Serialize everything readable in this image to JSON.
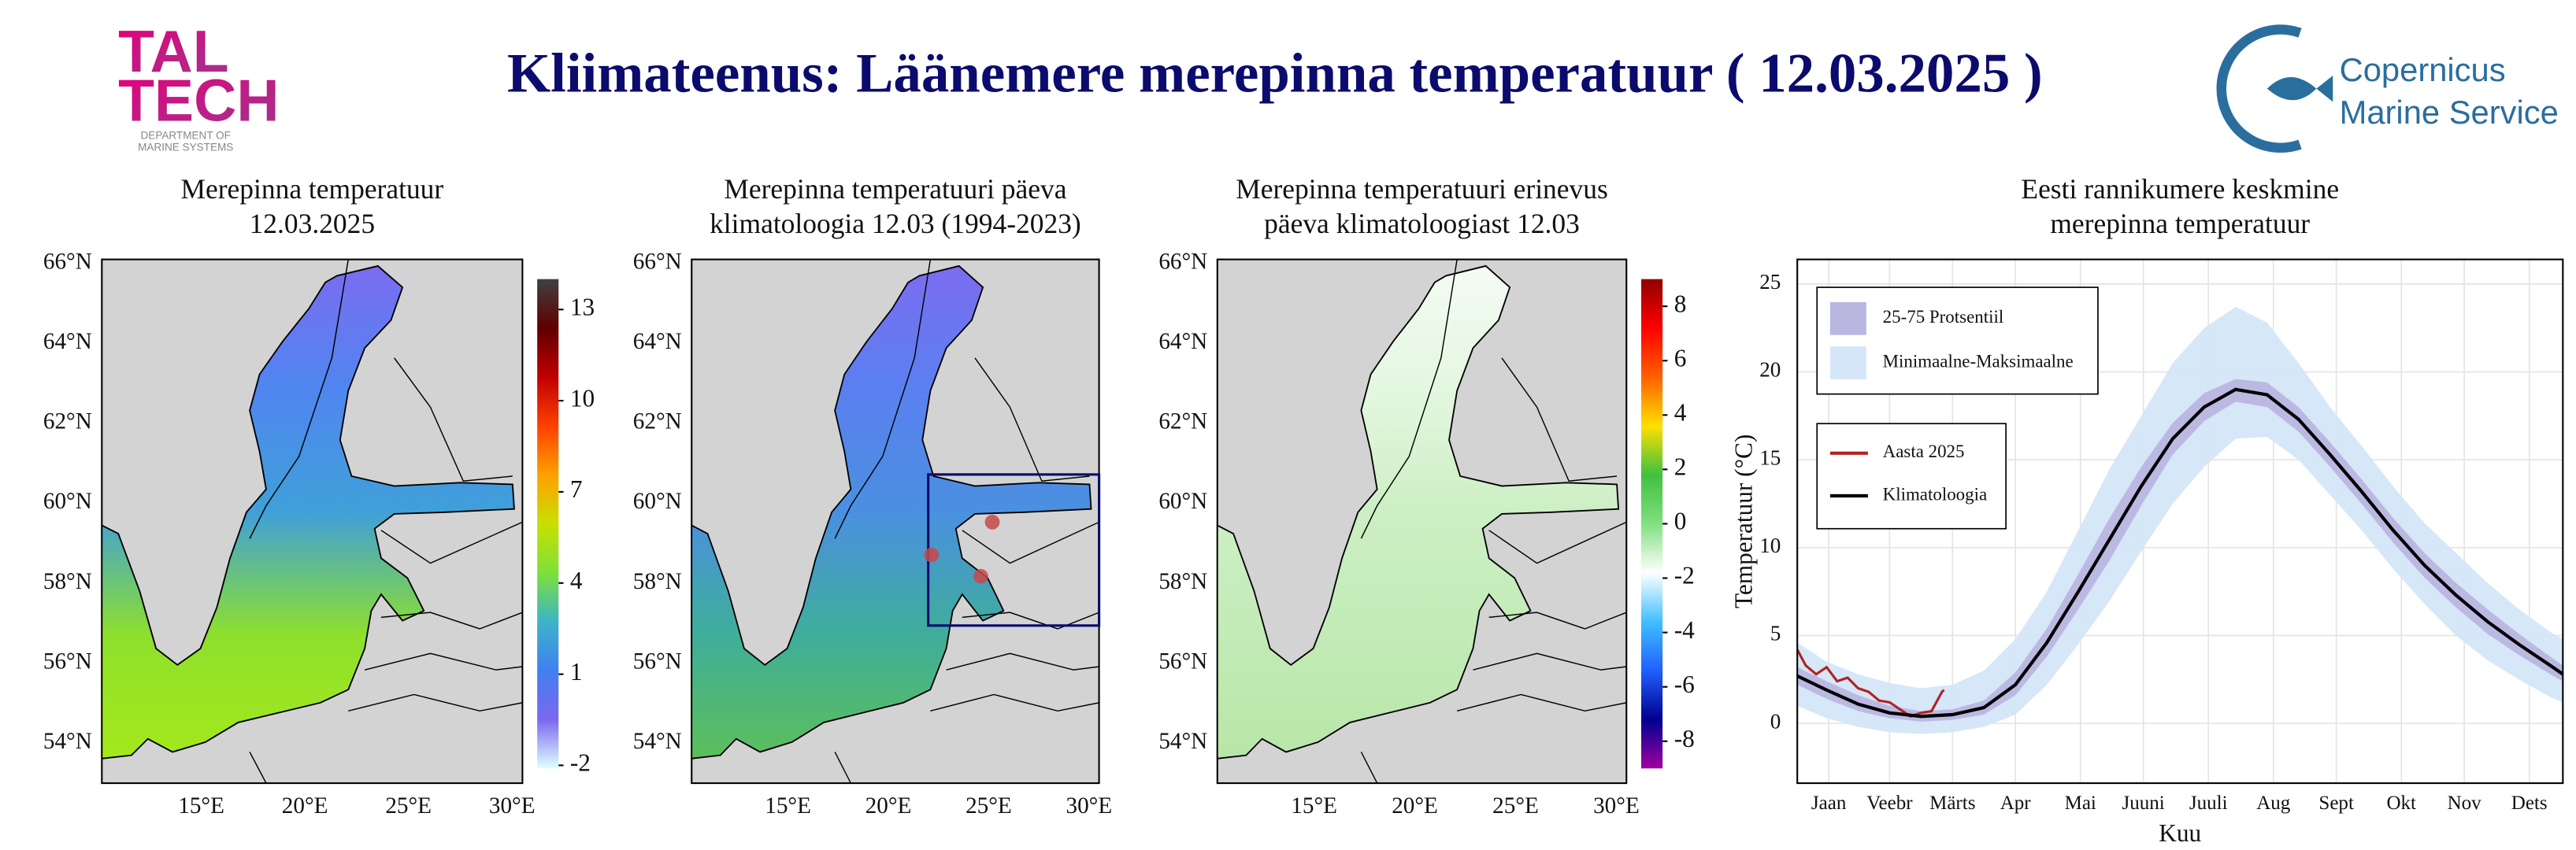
{
  "header": {
    "title": "Kliimateenus: Läänemere merepinna temperatuur ( 12.03.2025 )",
    "logo_left": [
      "TAL",
      "TECH",
      "DEPARTMENT OF",
      "MARINE SYSTEMS"
    ],
    "logo_right": [
      "Copernicus",
      "Marine Service"
    ]
  },
  "maps": {
    "xlim": [
      10.2,
      30.5
    ],
    "ylim": [
      53.0,
      66.1
    ],
    "lat_ticks": [
      {
        "value": 54,
        "label": "54°N"
      },
      {
        "value": 56,
        "label": "56°N"
      },
      {
        "value": 58,
        "label": "58°N"
      },
      {
        "value": 60,
        "label": "60°N"
      },
      {
        "value": 62,
        "label": "62°N"
      },
      {
        "value": 64,
        "label": "64°N"
      },
      {
        "value": 66,
        "label": "66°N"
      }
    ],
    "lon_ticks": [
      {
        "value": 15,
        "label": "15°E"
      },
      {
        "value": 20,
        "label": "20°E"
      },
      {
        "value": 25,
        "label": "25°E"
      },
      {
        "value": 30,
        "label": "30°E"
      }
    ],
    "items": [
      {
        "title": [
          "Merepinna temperatuur",
          "12.03.2025"
        ],
        "sea_colors": [
          "#7b6cf0",
          "#4f86f0",
          "#3fa0d8",
          "#8ee02c",
          "#a4e81c"
        ],
        "colorbar": {
          "lim": [
            -2.1,
            14
          ],
          "ticks": [
            -2,
            1,
            4,
            7,
            10,
            13
          ],
          "colors": [
            "#e0ffff",
            "#7b68ee",
            "#4080f0",
            "#3cb4c8",
            "#7ee03a",
            "#c8e000",
            "#ffa000",
            "#ff4000",
            "#c00000",
            "#600000",
            "#404040"
          ]
        }
      },
      {
        "title": [
          "Merepinna temperatuuri päeva",
          "klimatoloogia 12.03 (1994-2023)"
        ],
        "sea_colors": [
          "#7b6cf0",
          "#5a80f0",
          "#4a90e0",
          "#3fae9a",
          "#5cbf5a"
        ]
      },
      {
        "title": [
          "Merepinna temperatuuri erinevus",
          "päeva klimatoloogiast 12.03"
        ],
        "sea_colors": [
          "#f4fbf4",
          "#e4f7e0",
          "#cdefc4",
          "#c2ebb6",
          "#b8e6a8"
        ],
        "colorbar": {
          "lim": [
            -9,
            9
          ],
          "ticks": [
            8,
            6,
            4,
            2,
            0,
            -2,
            -4,
            -6,
            -8
          ],
          "colors": [
            "#a000a0",
            "#000090",
            "#2060ff",
            "#40c0ff",
            "#ffffff",
            "#80e080",
            "#40c040",
            "#ffe000",
            "#ff6000",
            "#ff0000",
            "#900000"
          ]
        }
      }
    ]
  },
  "chart_data": {
    "type": "line",
    "title": [
      "Eesti rannikumere keskmine",
      "merepinna temperatuur"
    ],
    "y_label": "Temperatuur (°C)",
    "x_label": "Kuu",
    "xlim": [
      1,
      366
    ],
    "ylim": [
      -3.4,
      26.4
    ],
    "yticks": [
      0,
      5,
      10,
      15,
      20,
      25
    ],
    "xticks": [
      {
        "value": 16,
        "label": "Jaan"
      },
      {
        "value": 45,
        "label": "Veebr"
      },
      {
        "value": 75,
        "label": "Märts"
      },
      {
        "value": 105,
        "label": "Apr"
      },
      {
        "value": 136,
        "label": "Mai"
      },
      {
        "value": 166,
        "label": "Juuni"
      },
      {
        "value": 197,
        "label": "Juuli"
      },
      {
        "value": 228,
        "label": "Aug"
      },
      {
        "value": 258,
        "label": "Sept"
      },
      {
        "value": 289,
        "label": "Okt"
      },
      {
        "value": 319,
        "label": "Nov"
      },
      {
        "value": 350,
        "label": "Dets"
      }
    ],
    "grid": true,
    "x": [
      1,
      15,
      30,
      45,
      60,
      75,
      90,
      105,
      120,
      135,
      150,
      165,
      180,
      195,
      210,
      225,
      240,
      255,
      270,
      285,
      300,
      315,
      330,
      345,
      360,
      366
    ],
    "series": [
      {
        "name": "25-75 Protsentiil",
        "kind": "band",
        "color": "#b9b6e0",
        "lower": [
          2.2,
          1.4,
          0.7,
          0.3,
          0.1,
          0.2,
          0.5,
          1.6,
          3.8,
          6.5,
          9.3,
          12.4,
          15.3,
          17.2,
          18.3,
          18.0,
          16.6,
          14.6,
          12.5,
          10.3,
          8.3,
          6.6,
          5.1,
          3.9,
          2.8,
          2.4
        ],
        "upper": [
          3.2,
          2.4,
          1.6,
          1.0,
          0.7,
          0.8,
          1.3,
          2.9,
          5.4,
          8.5,
          11.7,
          14.6,
          17.1,
          18.8,
          19.6,
          19.4,
          18.0,
          16.0,
          13.9,
          11.7,
          9.7,
          8.0,
          6.5,
          5.1,
          3.8,
          3.3
        ]
      },
      {
        "name": "Minimaalne-Maksimaalne",
        "kind": "band",
        "color": "#d4e6f8",
        "lower": [
          1.0,
          0.3,
          -0.2,
          -0.5,
          -0.6,
          -0.5,
          -0.2,
          0.5,
          2.2,
          4.5,
          7.0,
          9.8,
          12.5,
          14.6,
          16.2,
          16.3,
          15.0,
          13.0,
          11.0,
          8.8,
          6.8,
          5.0,
          3.6,
          2.5,
          1.5,
          1.2
        ],
        "upper": [
          4.6,
          3.5,
          2.8,
          2.3,
          2.0,
          2.2,
          3.0,
          4.8,
          7.5,
          11.0,
          14.5,
          17.5,
          20.5,
          22.5,
          23.7,
          22.8,
          20.5,
          18.0,
          15.8,
          13.5,
          11.4,
          9.7,
          8.0,
          6.5,
          5.2,
          4.8
        ]
      },
      {
        "name": "Aasta 2025",
        "kind": "line",
        "color": "#b22222",
        "x": [
          1,
          5,
          10,
          15,
          20,
          25,
          30,
          35,
          40,
          45,
          50,
          55,
          60,
          65,
          70,
          71
        ],
        "values": [
          4.2,
          3.3,
          2.8,
          3.2,
          2.4,
          2.6,
          2.0,
          1.8,
          1.3,
          1.2,
          0.8,
          0.4,
          0.6,
          0.7,
          1.8,
          1.9
        ]
      },
      {
        "name": "Klimatoloogia",
        "kind": "line",
        "color": "#000000",
        "values": [
          2.7,
          1.9,
          1.1,
          0.6,
          0.4,
          0.5,
          0.9,
          2.2,
          4.6,
          7.5,
          10.5,
          13.5,
          16.2,
          18.0,
          19.0,
          18.7,
          17.3,
          15.3,
          13.2,
          11.0,
          9.0,
          7.3,
          5.8,
          4.5,
          3.3,
          2.8
        ]
      }
    ]
  }
}
